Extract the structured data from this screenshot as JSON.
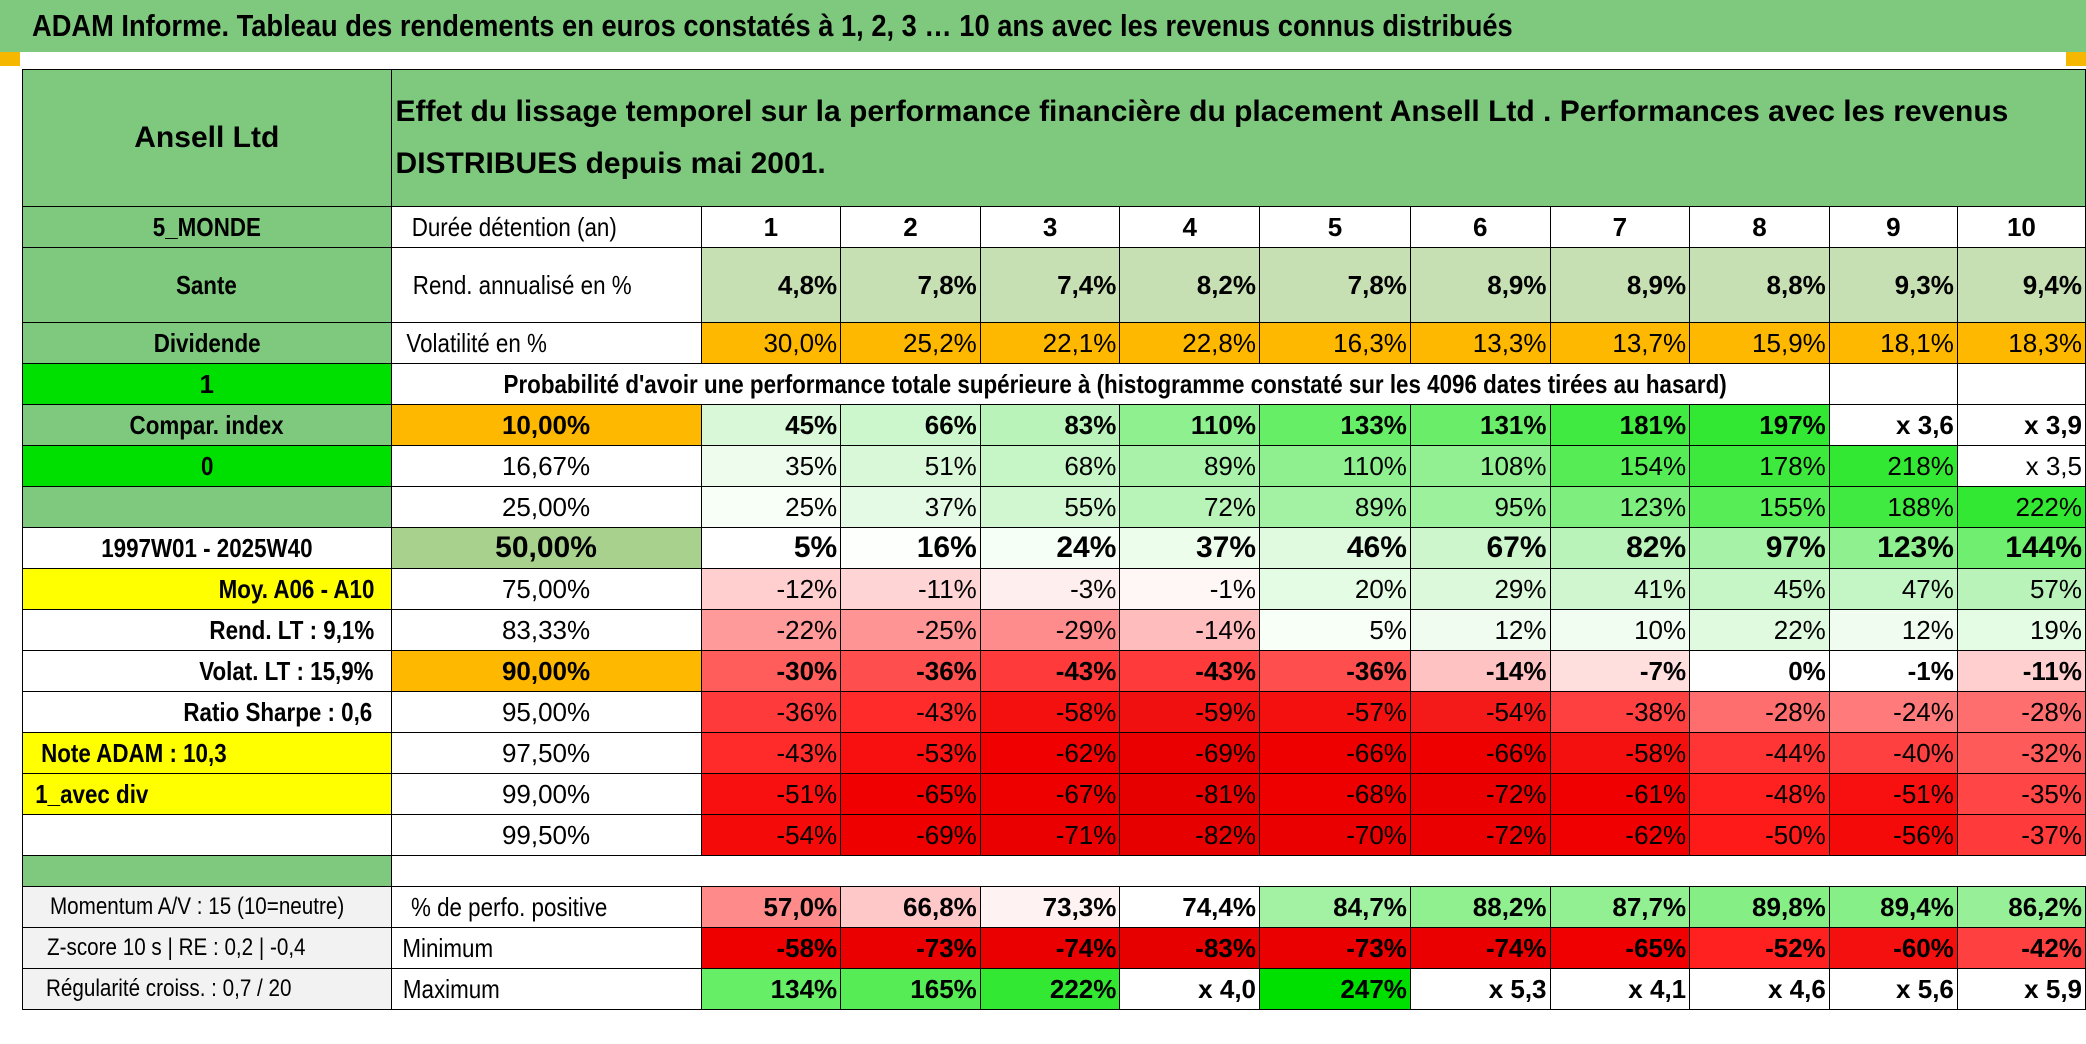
{
  "title": "ADAM Informe. Tableau des rendements en euros constatés à 1, 2, 3 … 10 ans avec les revenus connus distribués",
  "header": {
    "name": "Ansell Ltd",
    "caption": "Effet du lissage temporel sur la performance financière du placement Ansell Ltd . Performances avec les revenus DISTRIBUES depuis mai 2001."
  },
  "left": {
    "region": "5_MONDE",
    "sector": "Sante",
    "dividend": "Dividende",
    "one": "1",
    "compar": "Compar. index",
    "zero": "0",
    "period": "1997W01 - 2025W40",
    "moy": "Moy. A06 - A10",
    "rend_lt": "Rend. LT :   9,1%",
    "volat_lt": "Volat. LT :   15,9%",
    "sharpe": "Ratio Sharpe :   0,6",
    "note": "Note ADAM : 10,3",
    "avec_div": "1_avec div"
  },
  "labels": {
    "duree": "Durée détention (an)",
    "rend": "Rend. annualisé en %",
    "vol": "Volatilité en %",
    "proba": "Probabilité d'avoir une performance totale supérieure à (histogramme constaté sur les 4096 dates tirées au hasard)"
  },
  "years": [
    "1",
    "2",
    "3",
    "4",
    "5",
    "6",
    "7",
    "8",
    "9",
    "10"
  ],
  "rendement": [
    "4,8%",
    "7,8%",
    "7,4%",
    "8,2%",
    "7,8%",
    "8,9%",
    "8,9%",
    "8,8%",
    "9,3%",
    "9,4%"
  ],
  "volatilite": [
    "30,0%",
    "25,2%",
    "22,1%",
    "22,8%",
    "16,3%",
    "13,3%",
    "13,7%",
    "15,9%",
    "18,1%",
    "18,3%"
  ],
  "quantiles": [
    {
      "p": "10,00%",
      "v": [
        "45%",
        "66%",
        "83%",
        "110%",
        "133%",
        "131%",
        "181%",
        "197%",
        "x 3,6",
        "x 3,9"
      ]
    },
    {
      "p": "16,67%",
      "v": [
        "35%",
        "51%",
        "68%",
        "89%",
        "110%",
        "108%",
        "154%",
        "178%",
        "218%",
        "x 3,5"
      ]
    },
    {
      "p": "25,00%",
      "v": [
        "25%",
        "37%",
        "55%",
        "72%",
        "89%",
        "95%",
        "123%",
        "155%",
        "188%",
        "222%"
      ]
    },
    {
      "p": "50,00%",
      "v": [
        "5%",
        "16%",
        "24%",
        "37%",
        "46%",
        "67%",
        "82%",
        "97%",
        "123%",
        "144%"
      ]
    },
    {
      "p": "75,00%",
      "v": [
        "-12%",
        "-11%",
        "-3%",
        "-1%",
        "20%",
        "29%",
        "41%",
        "45%",
        "47%",
        "57%"
      ]
    },
    {
      "p": "83,33%",
      "v": [
        "-22%",
        "-25%",
        "-29%",
        "-14%",
        "5%",
        "12%",
        "10%",
        "22%",
        "12%",
        "19%"
      ]
    },
    {
      "p": "90,00%",
      "v": [
        "-30%",
        "-36%",
        "-43%",
        "-43%",
        "-36%",
        "-14%",
        "-7%",
        "0%",
        "-1%",
        "-11%"
      ]
    },
    {
      "p": "95,00%",
      "v": [
        "-36%",
        "-43%",
        "-58%",
        "-59%",
        "-57%",
        "-54%",
        "-38%",
        "-28%",
        "-24%",
        "-28%"
      ]
    },
    {
      "p": "97,50%",
      "v": [
        "-43%",
        "-53%",
        "-62%",
        "-69%",
        "-66%",
        "-66%",
        "-58%",
        "-44%",
        "-40%",
        "-32%"
      ]
    },
    {
      "p": "99,00%",
      "v": [
        "-51%",
        "-65%",
        "-67%",
        "-81%",
        "-68%",
        "-72%",
        "-61%",
        "-48%",
        "-51%",
        "-35%"
      ]
    },
    {
      "p": "99,50%",
      "v": [
        "-54%",
        "-69%",
        "-71%",
        "-82%",
        "-70%",
        "-72%",
        "-62%",
        "-50%",
        "-56%",
        "-37%"
      ]
    }
  ],
  "stats": [
    {
      "left": "Momentum A/V : 15 (10=neutre)",
      "label": "% de perfo. positive",
      "v": [
        "57,0%",
        "66,8%",
        "73,3%",
        "74,4%",
        "84,7%",
        "88,2%",
        "87,7%",
        "89,8%",
        "89,4%",
        "86,2%"
      ]
    },
    {
      "left": "Z-score 10 s | RE : 0,2 | -0,4",
      "label": "Minimum",
      "v": [
        "-58%",
        "-73%",
        "-74%",
        "-83%",
        "-73%",
        "-74%",
        "-65%",
        "-52%",
        "-60%",
        "-42%"
      ]
    },
    {
      "left": "Régularité croiss. : 0,7 / 20",
      "label": "Maximum",
      "v": [
        "134%",
        "165%",
        "222%",
        "x 4,0",
        "247%",
        "x 5,3",
        "x 4,1",
        "x 4,6",
        "x 5,6",
        "x 5,9"
      ]
    }
  ],
  "colors": {
    "header_green": "#7fc97f",
    "bright_green": "#00e000",
    "orange": "#ffb800",
    "yellow": "#ffff00",
    "rend_cells": [
      "#c6e0b4",
      "#c6e0b4",
      "#c6e0b4",
      "#c6e0b4",
      "#c6e0b4",
      "#c6e0b4",
      "#c6e0b4",
      "#c6e0b4",
      "#c6e0b4",
      "#c6e0b4"
    ],
    "quant_cells": [
      [
        "#d8f8d8",
        "#ccf7cc",
        "#b9f3b9",
        "#8ff08f",
        "#66ee66",
        "#6aee6a",
        "#40ea40",
        "#33e833",
        "#ffffff",
        "#ffffff"
      ],
      [
        "#edfced",
        "#d8f8d8",
        "#c6f5c6",
        "#a9f2a9",
        "#8ff08f",
        "#92f092",
        "#55ec55",
        "#3ee93e",
        "#33e833",
        "#ffffff"
      ],
      [
        "#f7fff7",
        "#e5fae5",
        "#d0f7d0",
        "#b8f3b8",
        "#a3f1a3",
        "#9cf19c",
        "#7eef7e",
        "#57ed57",
        "#40ea40",
        "#33e833"
      ],
      [
        "#ffffff",
        "#fcfffc",
        "#f5fff5",
        "#ecfdec",
        "#e0fae0",
        "#cdf6cd",
        "#b9f3b9",
        "#a6f2a6",
        "#8ff08f",
        "#6fee6f"
      ],
      [
        "#ffcfcf",
        "#ffd4d4",
        "#ffeeee",
        "#fff6f6",
        "#e4fbe4",
        "#dcf9dc",
        "#cff6cf",
        "#c6f5c6",
        "#c4f5c4",
        "#b9f3b9"
      ],
      [
        "#ff9a9a",
        "#ff9494",
        "#ff8c8c",
        "#ffbcbc",
        "#f7fff7",
        "#effcef",
        "#f1fdf1",
        "#e0fae0",
        "#effcef",
        "#e4fbe4"
      ],
      [
        "#ff5c5c",
        "#ff4e4e",
        "#ff3a3a",
        "#ff3a3a",
        "#ff4e4e",
        "#ffc2c2",
        "#ffdede",
        "#ffffff",
        "#ffffff",
        "#ffcfcf"
      ],
      [
        "#ff3a3a",
        "#ff2a2a",
        "#f51010",
        "#f01010",
        "#f51010",
        "#f51a1a",
        "#ff4040",
        "#ff6e6e",
        "#ff7a7a",
        "#ff6e6e"
      ],
      [
        "#ff2a2a",
        "#f81010",
        "#f00000",
        "#ea0000",
        "#ee0000",
        "#ee0000",
        "#f51010",
        "#ff3434",
        "#ff4040",
        "#ff5a5a"
      ],
      [
        "#f81010",
        "#f00000",
        "#ee0000",
        "#e60000",
        "#ee0000",
        "#ea0000",
        "#f00000",
        "#ff2020",
        "#f81010",
        "#ff4545"
      ],
      [
        "#f50a0a",
        "#ee0000",
        "#ea0000",
        "#e60000",
        "#ea0000",
        "#ea0000",
        "#f00000",
        "#ff1a1a",
        "#f50a0a",
        "#ff3a3a"
      ]
    ],
    "stat_cells": [
      [
        "#ff8a8a",
        "#ffc8c8",
        "#fff2f2",
        "#ffffff",
        "#a3f1a3",
        "#90f090",
        "#92f092",
        "#85ef85",
        "#87ef87",
        "#97f097"
      ],
      [
        "#ee0000",
        "#ea0000",
        "#ea0000",
        "#e60000",
        "#ea0000",
        "#ea0000",
        "#f00000",
        "#ff2020",
        "#f51010",
        "#ff4040"
      ],
      [
        "#66ee66",
        "#55ec55",
        "#33e833",
        "#ffffff",
        "#00e000",
        "#ffffff",
        "#ffffff",
        "#ffffff",
        "#ffffff",
        "#ffffff"
      ]
    ]
  }
}
